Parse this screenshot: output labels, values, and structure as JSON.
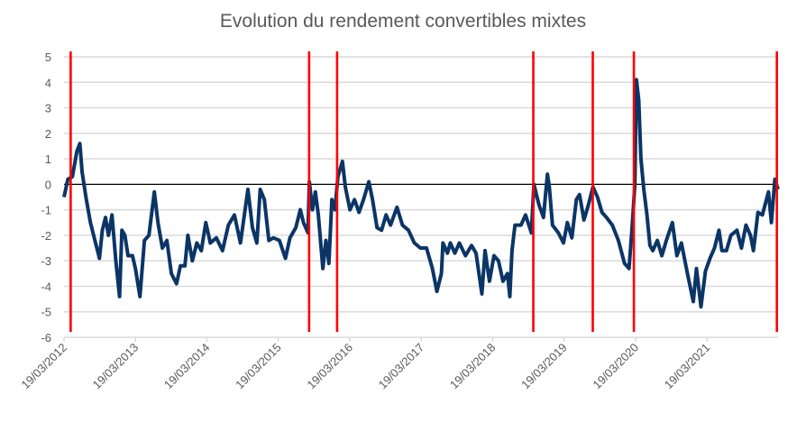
{
  "chart_data": {
    "type": "line",
    "title": "Evolution du rendement convertibles mixtes",
    "xlabel": "",
    "ylabel": "",
    "ylim": [
      -6,
      5
    ],
    "xlim": [
      "2012-03-19",
      "2022-03-17"
    ],
    "yticks": [
      "5",
      "4",
      "3",
      "2",
      "1",
      "0",
      "-1",
      "-2",
      "-3",
      "-4",
      "-5",
      "-6"
    ],
    "xticks": [
      "19/03/2012",
      "19/03/2013",
      "19/03/2014",
      "19/03/2015",
      "19/03/2016",
      "19/03/2017",
      "19/03/2018",
      "19/03/2019",
      "19/03/2020",
      "19/03/2021"
    ],
    "xtick_dates": [
      "2012-03-19",
      "2013-03-19",
      "2014-03-19",
      "2015-03-19",
      "2016-03-19",
      "2017-03-19",
      "2018-03-19",
      "2019-03-19",
      "2020-03-19",
      "2021-03-19"
    ],
    "grid": true,
    "zero_line": true,
    "colors": {
      "series": "#0b3566",
      "markers": "#ff0000",
      "grid": "#d9d9d9",
      "zero": "#000000"
    },
    "vertical_markers": [
      "2012-04-22",
      "2015-08-24",
      "2016-01-14",
      "2018-10-13",
      "2019-08-13",
      "2020-03-10",
      "2022-03-11"
    ],
    "series": [
      {
        "x": [
          "2012-03-19",
          "2012-04-08",
          "2012-05-01",
          "2012-05-24",
          "2012-06-08",
          "2012-06-19",
          "2012-07-09",
          "2012-08-01",
          "2012-08-24",
          "2012-09-16",
          "2012-10-01",
          "2012-10-17",
          "2012-11-01",
          "2012-11-19",
          "2012-12-09",
          "2012-12-28",
          "2013-01-09",
          "2013-01-24",
          "2013-02-09",
          "2013-03-04",
          "2013-03-19",
          "2013-04-11",
          "2013-05-04",
          "2013-05-27",
          "2013-06-24",
          "2013-07-12",
          "2013-08-04",
          "2013-08-27",
          "2013-09-19",
          "2013-10-15",
          "2013-11-04",
          "2013-11-27",
          "2013-12-12",
          "2014-01-04",
          "2014-01-27",
          "2014-02-19",
          "2014-03-14",
          "2014-04-06",
          "2014-05-07",
          "2014-06-07",
          "2014-07-07",
          "2014-08-07",
          "2014-09-07",
          "2014-10-15",
          "2014-11-07",
          "2014-11-30",
          "2014-12-17",
          "2015-01-07",
          "2015-01-30",
          "2015-02-22",
          "2015-03-25",
          "2015-04-25",
          "2015-05-18",
          "2015-06-17",
          "2015-07-10",
          "2015-07-26",
          "2015-08-18",
          "2015-08-25",
          "2015-09-10",
          "2015-09-25",
          "2015-10-10",
          "2015-11-02",
          "2015-11-18",
          "2015-12-03",
          "2015-12-18",
          "2016-01-03",
          "2016-01-18",
          "2016-02-10",
          "2016-02-25",
          "2016-03-20",
          "2016-04-12",
          "2016-05-05",
          "2016-05-28",
          "2016-06-24",
          "2016-07-13",
          "2016-08-05",
          "2016-08-28",
          "2016-09-20",
          "2016-10-13",
          "2016-11-15",
          "2016-12-13",
          "2017-01-13",
          "2017-02-12",
          "2017-03-15",
          "2017-04-15",
          "2017-05-15",
          "2017-06-07",
          "2017-06-30",
          "2017-07-08",
          "2017-07-31",
          "2017-08-15",
          "2017-09-07",
          "2017-09-30",
          "2017-10-31",
          "2017-12-01",
          "2017-12-24",
          "2018-01-23",
          "2018-02-08",
          "2018-03-03",
          "2018-03-26",
          "2018-04-18",
          "2018-05-11",
          "2018-06-03",
          "2018-06-15",
          "2018-06-26",
          "2018-07-11",
          "2018-08-11",
          "2018-09-03",
          "2018-10-03",
          "2018-10-16",
          "2018-11-11",
          "2018-12-04",
          "2018-12-24",
          "2019-01-03",
          "2019-01-19",
          "2019-02-18",
          "2019-03-16",
          "2019-04-05",
          "2019-04-28",
          "2019-05-21",
          "2019-06-06",
          "2019-06-29",
          "2019-07-22",
          "2019-08-14",
          "2019-09-06",
          "2019-09-29",
          "2019-10-22",
          "2019-11-21",
          "2019-12-22",
          "2020-01-22",
          "2020-02-14",
          "2020-02-29",
          "2020-03-15",
          "2020-03-23",
          "2020-04-04",
          "2020-04-15",
          "2020-04-30",
          "2020-05-16",
          "2020-05-31",
          "2020-06-15",
          "2020-07-08",
          "2020-07-31",
          "2020-08-23",
          "2020-09-23",
          "2020-10-16",
          "2020-11-08",
          "2020-12-09",
          "2021-01-08",
          "2021-01-24",
          "2021-02-16",
          "2021-03-11",
          "2021-04-03",
          "2021-04-26",
          "2021-05-19",
          "2021-06-03",
          "2021-06-26",
          "2021-07-19",
          "2021-08-19",
          "2021-09-11",
          "2021-10-04",
          "2021-10-27",
          "2021-11-11",
          "2021-12-04",
          "2021-12-27",
          "2022-01-27",
          "2022-02-11",
          "2022-03-01",
          "2022-03-17"
        ],
        "y": [
          -0.5,
          0.2,
          0.3,
          1.3,
          1.6,
          0.5,
          -0.5,
          -1.5,
          -2.2,
          -2.9,
          -1.8,
          -1.3,
          -2.0,
          -1.2,
          -3.0,
          -4.4,
          -1.8,
          -2.0,
          -2.8,
          -2.8,
          -3.3,
          -4.4,
          -2.2,
          -2.0,
          -0.3,
          -1.5,
          -2.5,
          -2.2,
          -3.5,
          -3.9,
          -3.2,
          -3.2,
          -2.0,
          -3.0,
          -2.3,
          -2.6,
          -1.5,
          -2.3,
          -2.1,
          -2.6,
          -1.6,
          -1.2,
          -2.3,
          -0.2,
          -1.7,
          -2.3,
          -0.2,
          -0.6,
          -2.2,
          -2.1,
          -2.2,
          -2.9,
          -2.1,
          -1.7,
          -1.0,
          -1.5,
          -1.9,
          0.1,
          -1.0,
          -0.3,
          -1.2,
          -3.3,
          -2.2,
          -3.1,
          -0.6,
          -1.0,
          0.3,
          0.9,
          -0.1,
          -1.0,
          -0.6,
          -1.1,
          -0.6,
          0.1,
          -0.6,
          -1.7,
          -1.8,
          -1.2,
          -1.6,
          -0.9,
          -1.6,
          -1.8,
          -2.3,
          -2.5,
          -2.5,
          -3.3,
          -4.2,
          -3.5,
          -2.3,
          -2.7,
          -2.3,
          -2.7,
          -2.3,
          -2.8,
          -2.4,
          -2.7,
          -4.3,
          -2.6,
          -3.8,
          -2.8,
          -3.0,
          -3.8,
          -3.5,
          -4.4,
          -2.6,
          -1.6,
          -1.6,
          -1.2,
          -1.9,
          0.0,
          -0.8,
          -1.3,
          0.4,
          -0.1,
          -1.6,
          -1.9,
          -2.3,
          -1.5,
          -2.1,
          -0.6,
          -0.4,
          -1.4,
          -0.8,
          -0.1,
          -0.5,
          -1.1,
          -1.3,
          -1.6,
          -2.2,
          -3.1,
          -3.3,
          -1.8,
          0.0,
          4.1,
          3.3,
          1.0,
          -0.2,
          -1.2,
          -2.4,
          -2.6,
          -2.2,
          -2.8,
          -2.2,
          -1.5,
          -2.8,
          -2.3,
          -3.5,
          -4.6,
          -3.3,
          -4.8,
          -3.4,
          -2.9,
          -2.5,
          -1.8,
          -2.6,
          -2.6,
          -2.0,
          -1.8,
          -2.5,
          -1.6,
          -2.0,
          -2.6,
          -1.1,
          -1.2,
          -0.3,
          -1.5,
          0.2,
          -0.2
        ]
      }
    ]
  }
}
